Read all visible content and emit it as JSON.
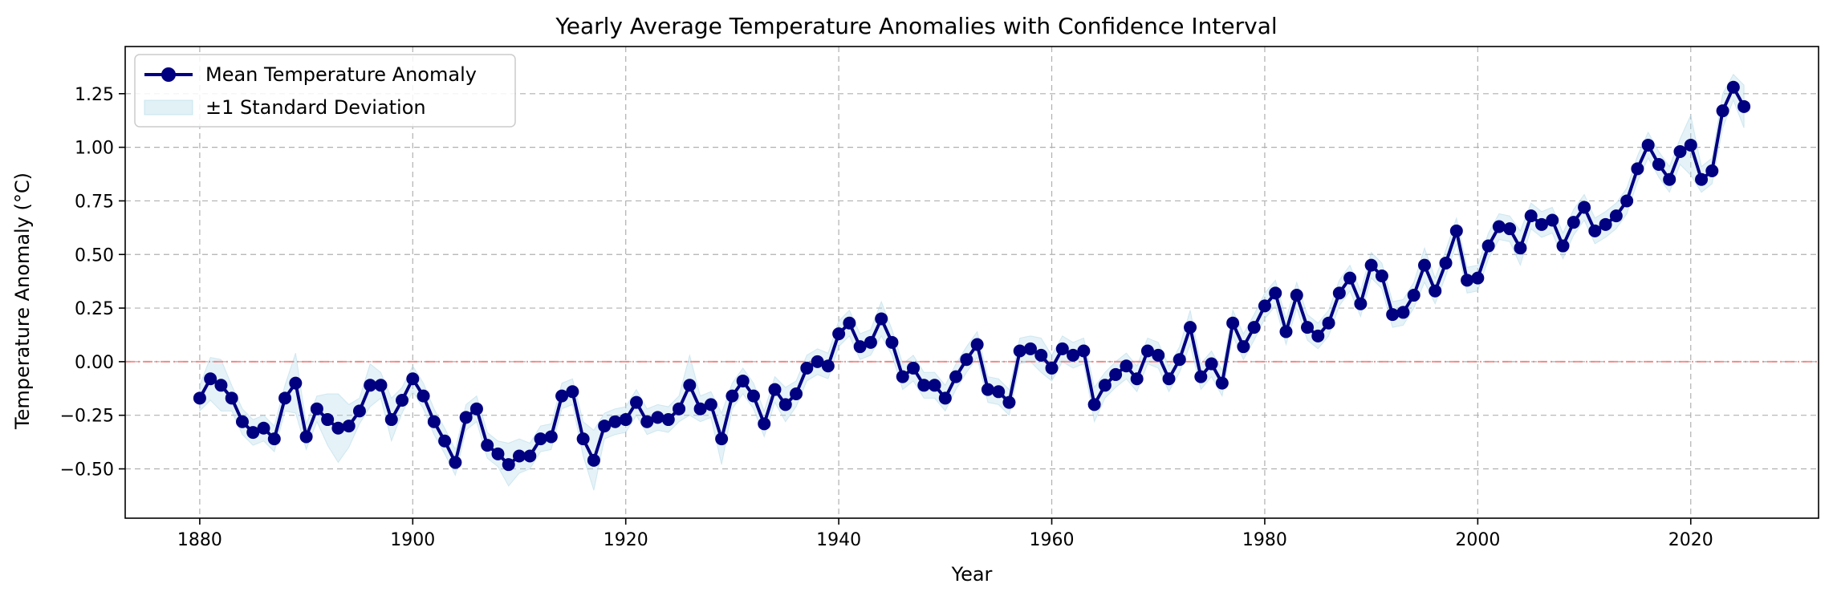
{
  "chart_data": {
    "type": "line",
    "title": "Yearly Average Temperature Anomalies with Confidence Interval",
    "xlabel": "Year",
    "ylabel": "Temperature Anomaly (°C)",
    "xlim": [
      1873,
      2032
    ],
    "ylim": [
      -0.73,
      1.47
    ],
    "x_ticks": [
      1880,
      1900,
      1920,
      1940,
      1960,
      1980,
      2000,
      2020
    ],
    "y_ticks": [
      -0.5,
      -0.25,
      0.0,
      0.25,
      0.5,
      0.75,
      1.0,
      1.25
    ],
    "x_tick_labels": [
      "1880",
      "1900",
      "1920",
      "1940",
      "1960",
      "1980",
      "2000",
      "2020"
    ],
    "y_tick_labels": [
      "−0.50",
      "−0.25",
      "0.00",
      "0.25",
      "0.50",
      "0.75",
      "1.00",
      "1.25"
    ],
    "grid": true,
    "legend_position": "top-left",
    "reference_line": {
      "y": 0.0,
      "color": "#f08080",
      "style": "dash-dot"
    },
    "colors": {
      "line": "#000080",
      "band": "#add8e6"
    },
    "series": [
      {
        "name": "Mean Temperature Anomaly",
        "x": [
          1880,
          1881,
          1882,
          1883,
          1884,
          1885,
          1886,
          1887,
          1888,
          1889,
          1890,
          1891,
          1892,
          1893,
          1894,
          1895,
          1896,
          1897,
          1898,
          1899,
          1900,
          1901,
          1902,
          1903,
          1904,
          1905,
          1906,
          1907,
          1908,
          1909,
          1910,
          1911,
          1912,
          1913,
          1914,
          1915,
          1916,
          1917,
          1918,
          1919,
          1920,
          1921,
          1922,
          1923,
          1924,
          1925,
          1926,
          1927,
          1928,
          1929,
          1930,
          1931,
          1932,
          1933,
          1934,
          1935,
          1936,
          1937,
          1938,
          1939,
          1940,
          1941,
          1942,
          1943,
          1944,
          1945,
          1946,
          1947,
          1948,
          1949,
          1950,
          1951,
          1952,
          1953,
          1954,
          1955,
          1956,
          1957,
          1958,
          1959,
          1960,
          1961,
          1962,
          1963,
          1964,
          1965,
          1966,
          1967,
          1968,
          1969,
          1970,
          1971,
          1972,
          1973,
          1974,
          1975,
          1976,
          1977,
          1978,
          1979,
          1980,
          1981,
          1982,
          1983,
          1984,
          1985,
          1986,
          1987,
          1988,
          1989,
          1990,
          1991,
          1992,
          1993,
          1994,
          1995,
          1996,
          1997,
          1998,
          1999,
          2000,
          2001,
          2002,
          2003,
          2004,
          2005,
          2006,
          2007,
          2008,
          2009,
          2010,
          2011,
          2012,
          2013,
          2014,
          2015,
          2016,
          2017,
          2018,
          2019,
          2020,
          2021,
          2022,
          2023,
          2024,
          2025
        ],
        "y": [
          -0.17,
          -0.08,
          -0.11,
          -0.17,
          -0.28,
          -0.33,
          -0.31,
          -0.36,
          -0.17,
          -0.1,
          -0.35,
          -0.22,
          -0.27,
          -0.31,
          -0.3,
          -0.23,
          -0.11,
          -0.11,
          -0.27,
          -0.18,
          -0.08,
          -0.16,
          -0.28,
          -0.37,
          -0.47,
          -0.26,
          -0.22,
          -0.39,
          -0.43,
          -0.48,
          -0.44,
          -0.44,
          -0.36,
          -0.35,
          -0.16,
          -0.14,
          -0.36,
          -0.46,
          -0.3,
          -0.28,
          -0.27,
          -0.19,
          -0.28,
          -0.26,
          -0.27,
          -0.22,
          -0.11,
          -0.22,
          -0.2,
          -0.36,
          -0.16,
          -0.09,
          -0.16,
          -0.29,
          -0.13,
          -0.2,
          -0.15,
          -0.03,
          0.0,
          -0.02,
          0.13,
          0.18,
          0.07,
          0.09,
          0.2,
          0.09,
          -0.07,
          -0.03,
          -0.11,
          -0.11,
          -0.17,
          -0.07,
          0.01,
          0.08,
          -0.13,
          -0.14,
          -0.19,
          0.05,
          0.06,
          0.03,
          -0.03,
          0.06,
          0.03,
          0.05,
          -0.2,
          -0.11,
          -0.06,
          -0.02,
          -0.08,
          0.05,
          0.03,
          -0.08,
          0.01,
          0.16,
          -0.07,
          -0.01,
          -0.1,
          0.18,
          0.07,
          0.16,
          0.26,
          0.32,
          0.14,
          0.31,
          0.16,
          0.12,
          0.18,
          0.32,
          0.39,
          0.27,
          0.45,
          0.4,
          0.22,
          0.23,
          0.31,
          0.45,
          0.33,
          0.46,
          0.61,
          0.38,
          0.39,
          0.54,
          0.63,
          0.62,
          0.53,
          0.68,
          0.64,
          0.66,
          0.54,
          0.65,
          0.72,
          0.61,
          0.64,
          0.68,
          0.75,
          0.9,
          1.01,
          0.92,
          0.85,
          0.98,
          1.01,
          0.85,
          0.89,
          1.17,
          1.28,
          1.19
        ]
      },
      {
        "name": "±1 Standard Deviation",
        "kind": "band",
        "std": [
          0.06,
          0.1,
          0.12,
          0.06,
          0.06,
          0.06,
          0.06,
          0.06,
          0.06,
          0.14,
          0.06,
          0.06,
          0.12,
          0.16,
          0.1,
          0.06,
          0.1,
          0.06,
          0.1,
          0.06,
          0.06,
          0.06,
          0.06,
          0.06,
          0.06,
          0.06,
          0.06,
          0.06,
          0.06,
          0.1,
          0.08,
          0.06,
          0.06,
          0.06,
          0.06,
          0.06,
          0.08,
          0.14,
          0.06,
          0.06,
          0.06,
          0.06,
          0.06,
          0.06,
          0.06,
          0.06,
          0.14,
          0.06,
          0.06,
          0.12,
          0.06,
          0.06,
          0.06,
          0.06,
          0.06,
          0.08,
          0.06,
          0.06,
          0.06,
          0.06,
          0.06,
          0.06,
          0.06,
          0.06,
          0.08,
          0.06,
          0.06,
          0.06,
          0.06,
          0.06,
          0.06,
          0.06,
          0.06,
          0.06,
          0.06,
          0.06,
          0.06,
          0.06,
          0.06,
          0.08,
          0.06,
          0.06,
          0.06,
          0.06,
          0.08,
          0.06,
          0.06,
          0.06,
          0.06,
          0.06,
          0.06,
          0.06,
          0.06,
          0.08,
          0.06,
          0.06,
          0.06,
          0.06,
          0.06,
          0.06,
          0.06,
          0.06,
          0.06,
          0.06,
          0.06,
          0.06,
          0.06,
          0.06,
          0.06,
          0.06,
          0.06,
          0.06,
          0.06,
          0.06,
          0.06,
          0.08,
          0.06,
          0.06,
          0.06,
          0.06,
          0.06,
          0.06,
          0.06,
          0.06,
          0.08,
          0.06,
          0.06,
          0.06,
          0.06,
          0.06,
          0.06,
          0.06,
          0.06,
          0.06,
          0.06,
          0.06,
          0.06,
          0.06,
          0.06,
          0.06,
          0.14,
          0.06,
          0.06,
          0.08,
          0.06,
          0.1
        ]
      }
    ]
  }
}
